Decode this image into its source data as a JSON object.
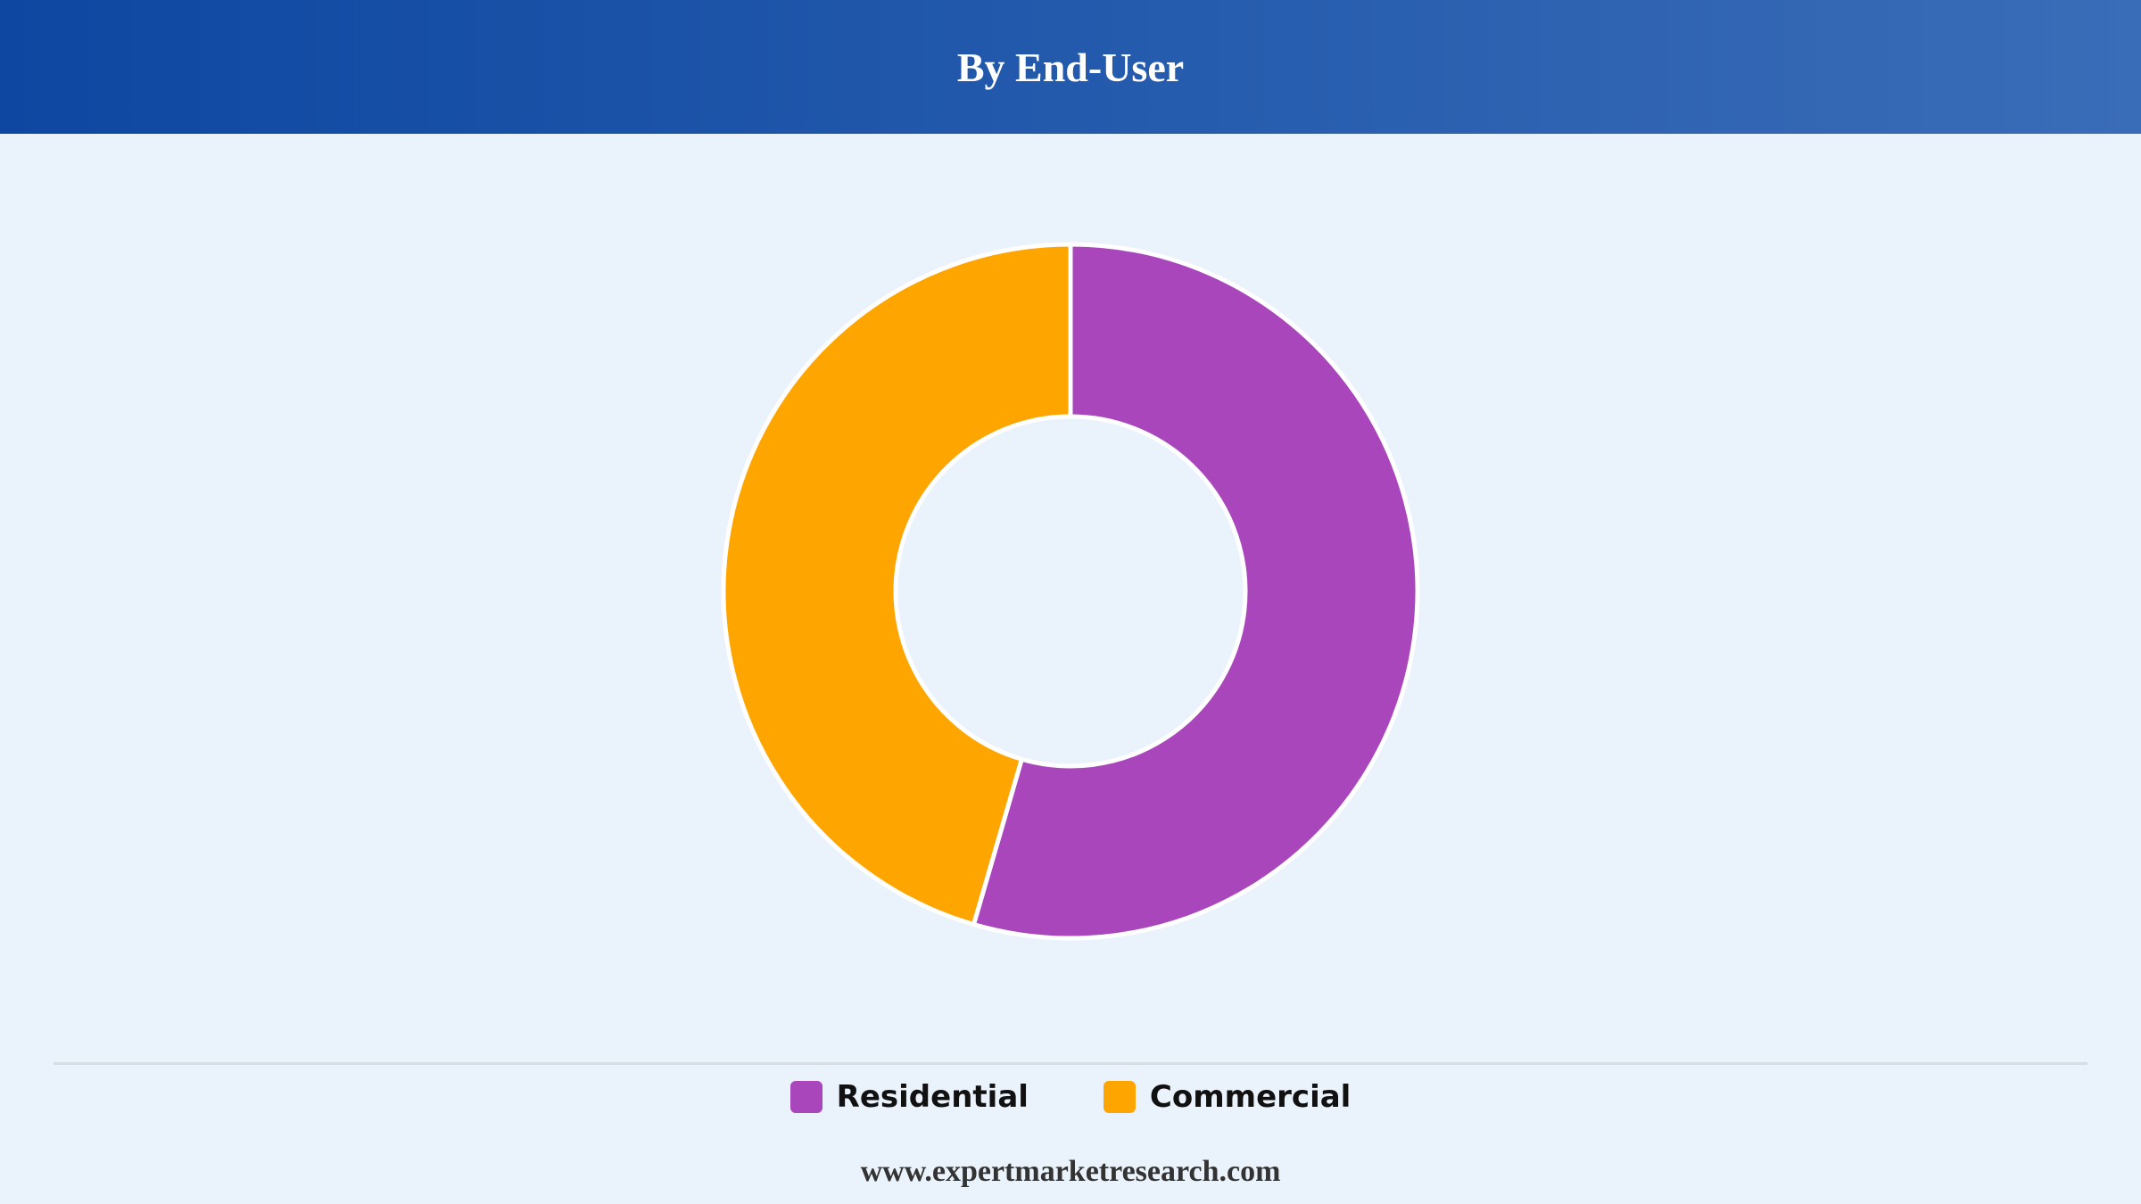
{
  "header": {
    "title": "By End-User"
  },
  "chart_data": {
    "type": "pie",
    "title": "By End-User",
    "categories": [
      "Residential",
      "Commercial"
    ],
    "values": [
      54.5,
      45.5
    ],
    "colors": [
      "#a946bc",
      "#ffa500"
    ],
    "legend_position": "bottom",
    "donut": true
  },
  "legend": {
    "items": [
      {
        "label": "Residential",
        "color": "#a946bc"
      },
      {
        "label": "Commercial",
        "color": "#ffa500"
      }
    ]
  },
  "footer": {
    "text": "www.expertmarketresearch.com"
  }
}
